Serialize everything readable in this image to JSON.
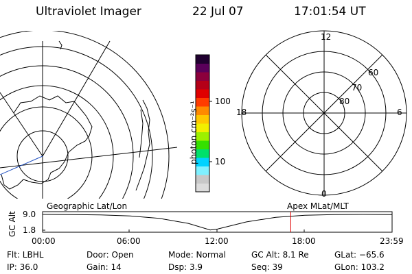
{
  "header": {
    "instrument": "Ultraviolet Imager",
    "date": "22 Jul 07",
    "time": "17:01:54 UT"
  },
  "left_map": {
    "label": "Geographic Lat/Lon"
  },
  "right_map": {
    "label": "Apex MLat/MLT",
    "mlt_labels": [
      "12",
      "18",
      "6",
      "0"
    ],
    "lat_labels": [
      "60",
      "70",
      "80"
    ]
  },
  "colorbar": {
    "unit_label": "photon cm⁻²s⁻¹",
    "tick_labels": [
      "100",
      "10"
    ],
    "colors": [
      "#dcdcdc",
      "#c8c8c8",
      "#7ff0ff",
      "#00d2ff",
      "#00e06a",
      "#35e000",
      "#9df000",
      "#f2f000",
      "#ffc800",
      "#ff8a00",
      "#ff3c00",
      "#e00000",
      "#b40018",
      "#8c003c",
      "#5a005a",
      "#200030"
    ]
  },
  "altitude_plot": {
    "ylabel": "GC Alt",
    "ytick_labels": [
      "9.0",
      "1.8"
    ],
    "xtick_labels": [
      "00:00",
      "06:00",
      "12:00",
      "18:00",
      "23:59"
    ],
    "marker_color": "#e00000"
  },
  "chart_data": {
    "type": "line",
    "title": "",
    "xlabel": "",
    "ylabel": "GC Alt",
    "x": [
      "00:00",
      "02:00",
      "04:00",
      "06:00",
      "08:00",
      "10:00",
      "11:30",
      "12:00",
      "14:00",
      "16:00",
      "18:00",
      "20:00",
      "22:00",
      "23:59"
    ],
    "series": [
      {
        "values": [
          9.0,
          8.95,
          8.75,
          8.3,
          7.2,
          4.9,
          1.9,
          2.3,
          5.6,
          7.7,
          8.6,
          8.95,
          9.0,
          8.9
        ]
      }
    ],
    "ylim": [
      1.8,
      9.0
    ],
    "marker_time": "17:01:54",
    "grid": false
  },
  "footer": {
    "flt": "Flt: LBHL",
    "door": "Door: Open",
    "mode": "Mode: Normal",
    "gc_alt": "GC Alt: 8.1 Re",
    "glat": "GLat: −65.6",
    "ip": "IP: 36.0",
    "gain": "Gain: 14",
    "dsp": "Dsp:     3.9",
    "seq": "Seq: 39",
    "glon": "GLon: 103.2"
  }
}
